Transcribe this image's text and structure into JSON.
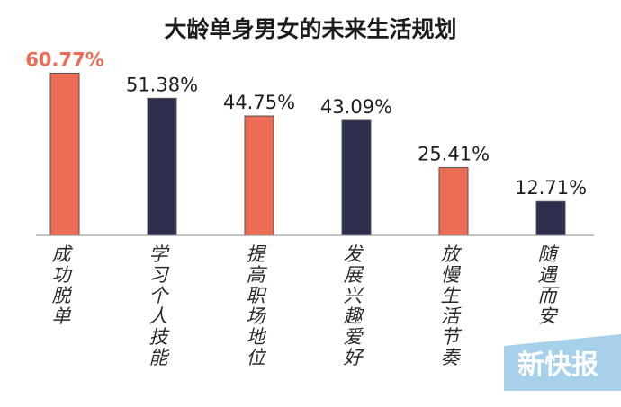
{
  "chart_data": {
    "type": "bar",
    "title": "大龄单身男女的未来生活规划",
    "xlabel": "",
    "ylabel": "",
    "ylim": [
      0,
      70
    ],
    "grid": false,
    "categories": [
      "成功脱单",
      "学习个人技能",
      "提高职场地位",
      "发展兴趣爱好",
      "放慢生活节奏",
      "随遇而安"
    ],
    "values": [
      60.77,
      51.38,
      44.75,
      43.09,
      25.41,
      12.71
    ],
    "value_labels": [
      "60.77%",
      "51.38%",
      "44.75%",
      "43.09%",
      "25.41%",
      "12.71%"
    ],
    "colors": [
      "#ec6c54",
      "#2e2e4e",
      "#ec6c54",
      "#2e2e4e",
      "#ec6c54",
      "#2e2e4e"
    ],
    "highlight_label_color": "#ec6c54",
    "label_color": "#1e1e1e"
  },
  "watermark": {
    "text": "新快报"
  }
}
